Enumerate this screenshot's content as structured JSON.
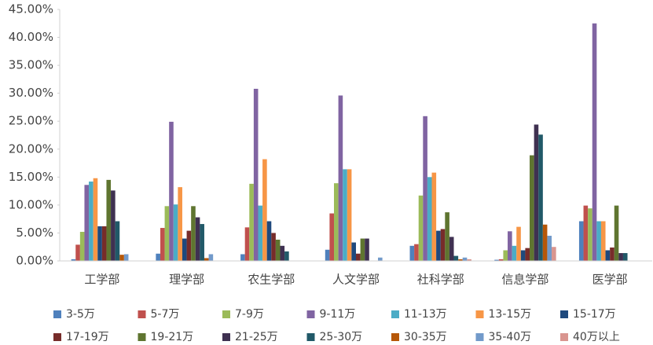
{
  "chart_data": {
    "type": "bar",
    "categories": [
      "工学部",
      "理学部",
      "农生学部",
      "人文学部",
      "社科学部",
      "信息学部",
      "医学部"
    ],
    "series": [
      {
        "name": "3-5万",
        "color": "#4f81bd",
        "values": [
          0.3,
          1.3,
          1.2,
          2.0,
          2.7,
          0.2,
          7.1
        ]
      },
      {
        "name": "5-7万",
        "color": "#c0504d",
        "values": [
          2.9,
          5.9,
          6.0,
          8.5,
          3.0,
          0.3,
          9.9
        ]
      },
      {
        "name": "7-9万",
        "color": "#9bbb59",
        "values": [
          5.2,
          9.8,
          13.8,
          13.9,
          11.7,
          1.9,
          9.4
        ]
      },
      {
        "name": "9-11万",
        "color": "#8064a2",
        "values": [
          13.6,
          24.9,
          30.8,
          29.6,
          25.9,
          5.3,
          42.5
        ]
      },
      {
        "name": "11-13万",
        "color": "#4bacc6",
        "values": [
          14.2,
          10.1,
          9.9,
          16.4,
          15.0,
          2.7,
          7.1
        ]
      },
      {
        "name": "13-15万",
        "color": "#f79646",
        "values": [
          14.8,
          13.2,
          18.2,
          16.4,
          15.8,
          6.1,
          7.1
        ]
      },
      {
        "name": "15-17万",
        "color": "#1f497d",
        "values": [
          6.2,
          4.0,
          7.1,
          3.3,
          5.4,
          1.9,
          1.9
        ]
      },
      {
        "name": "17-19万",
        "color": "#772c2a",
        "values": [
          6.2,
          5.4,
          5.0,
          1.3,
          5.7,
          2.3,
          2.4
        ]
      },
      {
        "name": "19-21万",
        "color": "#5f7530",
        "values": [
          14.5,
          9.8,
          3.8,
          4.0,
          8.7,
          18.9,
          9.9
        ]
      },
      {
        "name": "21-25万",
        "color": "#3f3151",
        "values": [
          12.6,
          7.8,
          2.7,
          4.0,
          4.3,
          24.4,
          1.4
        ]
      },
      {
        "name": "25-30万",
        "color": "#215968",
        "values": [
          7.1,
          6.6,
          1.7,
          0,
          0.9,
          22.6,
          1.4
        ]
      },
      {
        "name": "30-35万",
        "color": "#b65708",
        "values": [
          1.1,
          0.5,
          0,
          0,
          0.3,
          6.5,
          0
        ]
      },
      {
        "name": "35-40万",
        "color": "#729aca",
        "values": [
          1.2,
          1.2,
          0,
          0.6,
          0.6,
          4.5,
          0
        ]
      },
      {
        "name": "40万以上",
        "color": "#d9958f",
        "values": [
          0,
          0,
          0,
          0,
          0.3,
          2.5,
          0
        ]
      }
    ],
    "ylim": [
      0,
      45
    ],
    "yticks": [
      {
        "value": 0,
        "label": "0.00%"
      },
      {
        "value": 5,
        "label": "5.00%"
      },
      {
        "value": 10,
        "label": "10.00%"
      },
      {
        "value": 15,
        "label": "15.00%"
      },
      {
        "value": 20,
        "label": "20.00%"
      },
      {
        "value": 25,
        "label": "25.00%"
      },
      {
        "value": 30,
        "label": "30.00%"
      },
      {
        "value": 35,
        "label": "35.00%"
      },
      {
        "value": 40,
        "label": "40.00%"
      },
      {
        "value": 45,
        "label": "45.00%"
      }
    ],
    "grid": false,
    "legend": "bottom"
  }
}
